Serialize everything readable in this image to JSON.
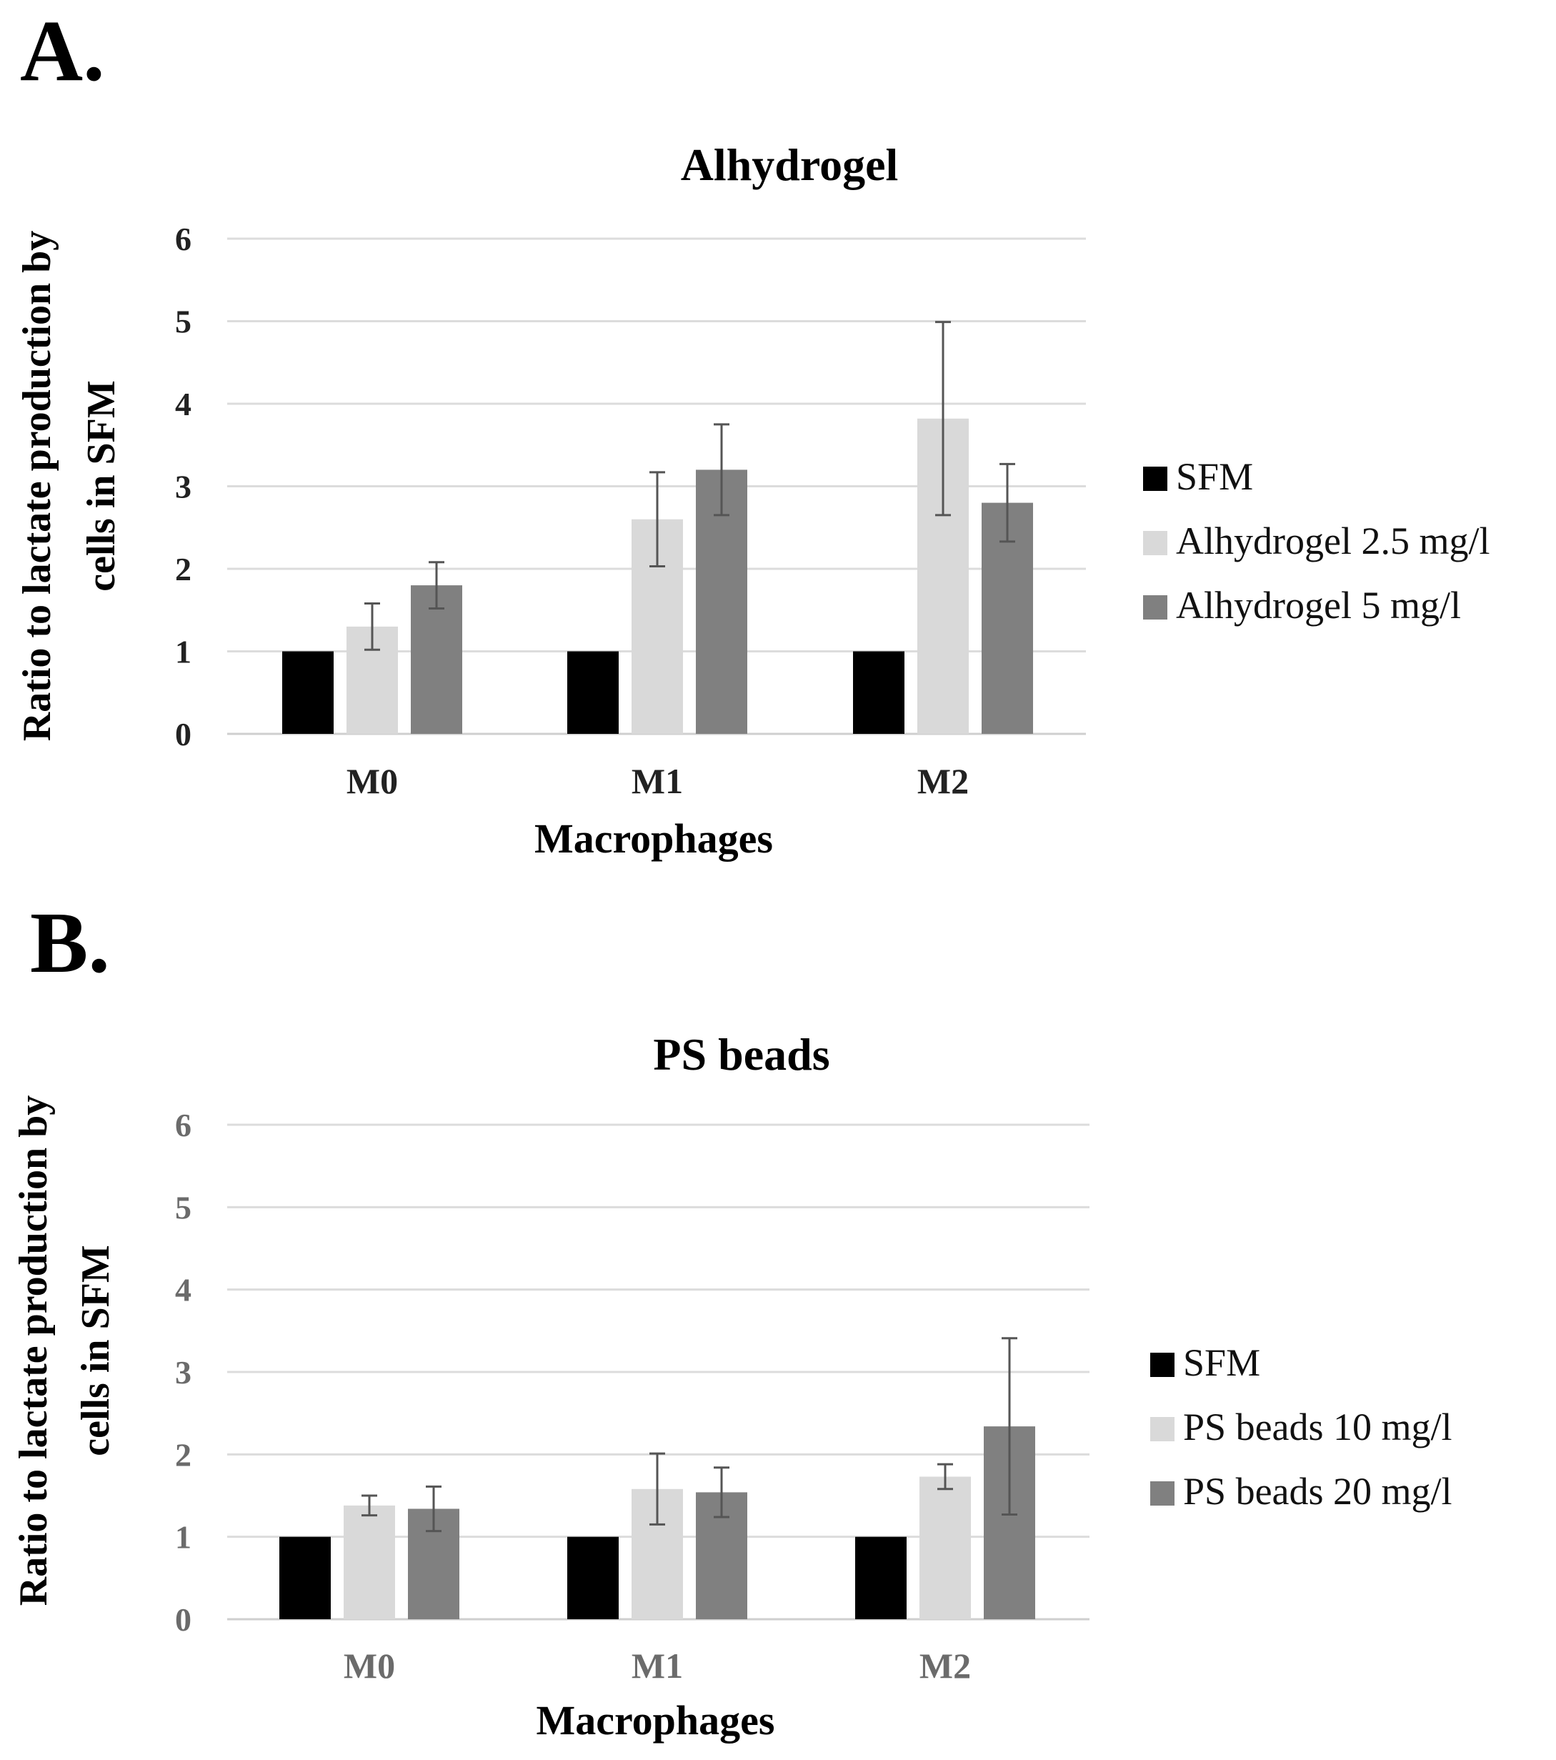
{
  "chart_data": [
    {
      "type": "bar",
      "panel": "A.",
      "title": "Alhydrogel",
      "xlabel": "Macrophages",
      "ylabel": [
        "Ratio to lactate production by",
        "cells in SFM"
      ],
      "ylim": [
        0,
        6
      ],
      "yticks": [
        0,
        1,
        2,
        3,
        4,
        5,
        6
      ],
      "grid": true,
      "legend_position": "right",
      "categories": [
        "M0",
        "M1",
        "M2"
      ],
      "series": [
        {
          "name": "SFM",
          "color": "#000000",
          "values": [
            1.0,
            1.0,
            1.0
          ],
          "errors": [
            0,
            0,
            0
          ]
        },
        {
          "name": "Alhydrogel 2.5 mg/l",
          "color": "#d9d9d9",
          "values": [
            1.3,
            2.6,
            3.82
          ],
          "errors": [
            0.28,
            0.57,
            1.17
          ]
        },
        {
          "name": "Alhydrogel 5 mg/l",
          "color": "#808080",
          "values": [
            1.8,
            3.2,
            2.8
          ],
          "errors": [
            0.28,
            0.55,
            0.47
          ]
        }
      ]
    },
    {
      "type": "bar",
      "panel": "B.",
      "title": "PS beads",
      "xlabel": "Macrophages",
      "ylabel": [
        "Ratio to lactate production by",
        "cells in SFM"
      ],
      "ylim": [
        0,
        6
      ],
      "yticks": [
        0,
        1,
        2,
        3,
        4,
        5,
        6
      ],
      "grid": true,
      "legend_position": "right",
      "categories": [
        "M0",
        "M1",
        "M2"
      ],
      "series": [
        {
          "name": "SFM",
          "color": "#000000",
          "values": [
            1.0,
            1.0,
            1.0
          ],
          "errors": [
            0,
            0,
            0
          ]
        },
        {
          "name": "PS beads 10 mg/l",
          "color": "#d9d9d9",
          "values": [
            1.38,
            1.58,
            1.73
          ],
          "errors": [
            0.12,
            0.43,
            0.15
          ]
        },
        {
          "name": "PS beads 20 mg/l",
          "color": "#808080",
          "values": [
            1.34,
            1.54,
            2.34
          ],
          "errors": [
            0.27,
            0.3,
            1.07
          ]
        }
      ]
    }
  ]
}
